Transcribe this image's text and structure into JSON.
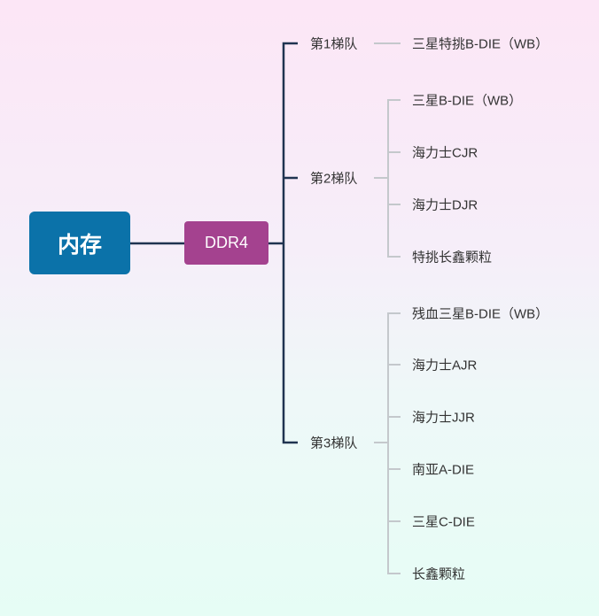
{
  "root": {
    "label": "内存",
    "color": "#0b72a9"
  },
  "sub": {
    "label": "DDR4",
    "color": "#a4428f"
  },
  "tiers": [
    {
      "label": "第1梯队",
      "children": [
        "三星特挑B-DIE（WB）"
      ]
    },
    {
      "label": "第2梯队",
      "children": [
        "三星B-DIE（WB）",
        "海力士CJR",
        "海力士DJR",
        "特挑长鑫颗粒"
      ]
    },
    {
      "label": "第3梯队",
      "children": [
        "残血三星B-DIE（WB）",
        "海力士AJR",
        "海力士JJR",
        "南亚A-DIE",
        "三星C-DIE",
        "长鑫颗粒"
      ]
    }
  ],
  "colors": {
    "main_line": "#1f3350",
    "leaf_line": "#c4c8cc"
  }
}
